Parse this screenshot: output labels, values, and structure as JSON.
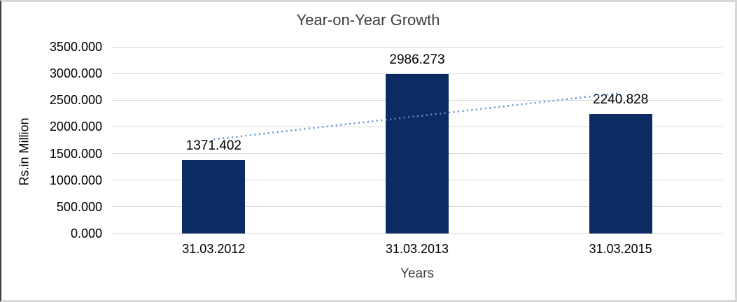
{
  "chart_data": {
    "type": "bar",
    "title": "Year-on-Year Growth",
    "xlabel": "Years",
    "ylabel": "Rs.in Million",
    "categories": [
      "31.03.2012",
      "31.03.2013",
      "31.03.2015"
    ],
    "values": [
      1371.402,
      2986.273,
      2240.828
    ],
    "data_labels": [
      "1371.402",
      "2986.273",
      "2240.828"
    ],
    "ylim": [
      0,
      3500
    ],
    "ytick_values": [
      0,
      500,
      1000,
      1500,
      2000,
      2500,
      3000,
      3500
    ],
    "ytick_labels": [
      "0.000",
      "500.000",
      "1000.000",
      "1500.000",
      "2000.000",
      "2500.000",
      "3000.000",
      "3500.000"
    ],
    "grid": "horizontal",
    "legend": "none",
    "trendline": {
      "type": "linear",
      "style": "dotted",
      "endpoint_values": [
        1764.788,
        2634.214
      ]
    }
  },
  "colors": {
    "bar": "#0d2b63",
    "trendline": "#5e91d2",
    "gridline": "#d9d9d9",
    "title_text": "#3f3f3f",
    "axis_text": "#000000"
  }
}
